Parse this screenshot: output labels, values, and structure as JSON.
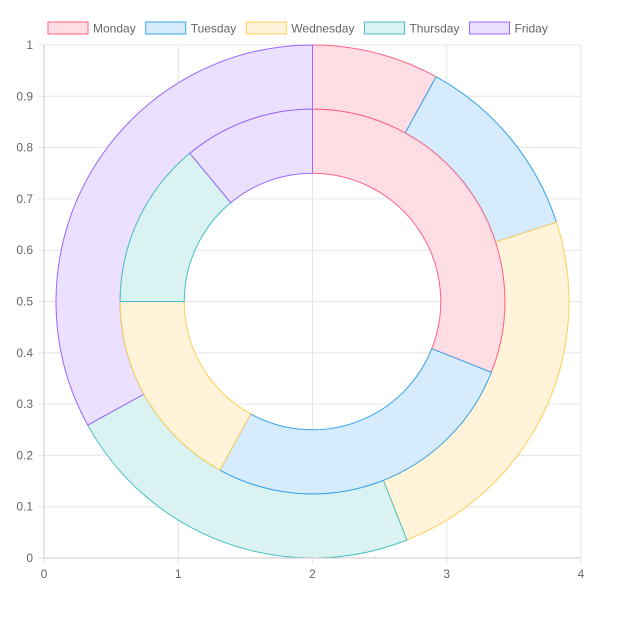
{
  "chart_data": {
    "type": "doughnut",
    "legend": {
      "position": "top",
      "items": [
        "Monday",
        "Tuesday",
        "Wednesday",
        "Thursday",
        "Friday"
      ]
    },
    "colors": {
      "Monday": {
        "border": "#ff6384",
        "fill": "#ffdde4"
      },
      "Tuesday": {
        "border": "#36a2eb",
        "fill": "#d6ebfb"
      },
      "Wednesday": {
        "border": "#ffcd56",
        "fill": "#fff4da"
      },
      "Thursday": {
        "border": "#4bc0c0",
        "fill": "#dbf2f2"
      },
      "Friday": {
        "border": "#9966ff",
        "fill": "#ebe0ff"
      }
    },
    "rings": [
      {
        "name": "outer",
        "values": [
          {
            "label": "Monday",
            "value": 0.08
          },
          {
            "label": "Tuesday",
            "value": 0.12
          },
          {
            "label": "Wednesday",
            "value": 0.24
          },
          {
            "label": "Thursday",
            "value": 0.23
          },
          {
            "label": "Friday",
            "value": 0.33
          }
        ]
      },
      {
        "name": "inner",
        "values": [
          {
            "label": "Monday",
            "value": 0.31
          },
          {
            "label": "Tuesday",
            "value": 0.27
          },
          {
            "label": "Wednesday",
            "value": 0.17
          },
          {
            "label": "Thursday",
            "value": 0.14
          },
          {
            "label": "Friday",
            "value": 0.11
          }
        ]
      }
    ],
    "x_axis": {
      "min": 0,
      "max": 4,
      "ticks": [
        "0",
        "1",
        "2",
        "3",
        "4"
      ]
    },
    "y_axis": {
      "min": 0,
      "max": 1,
      "ticks": [
        "0",
        "0.1",
        "0.2",
        "0.3",
        "0.4",
        "0.5",
        "0.6",
        "0.7",
        "0.8",
        "0.9",
        "1"
      ]
    },
    "grid": true
  }
}
